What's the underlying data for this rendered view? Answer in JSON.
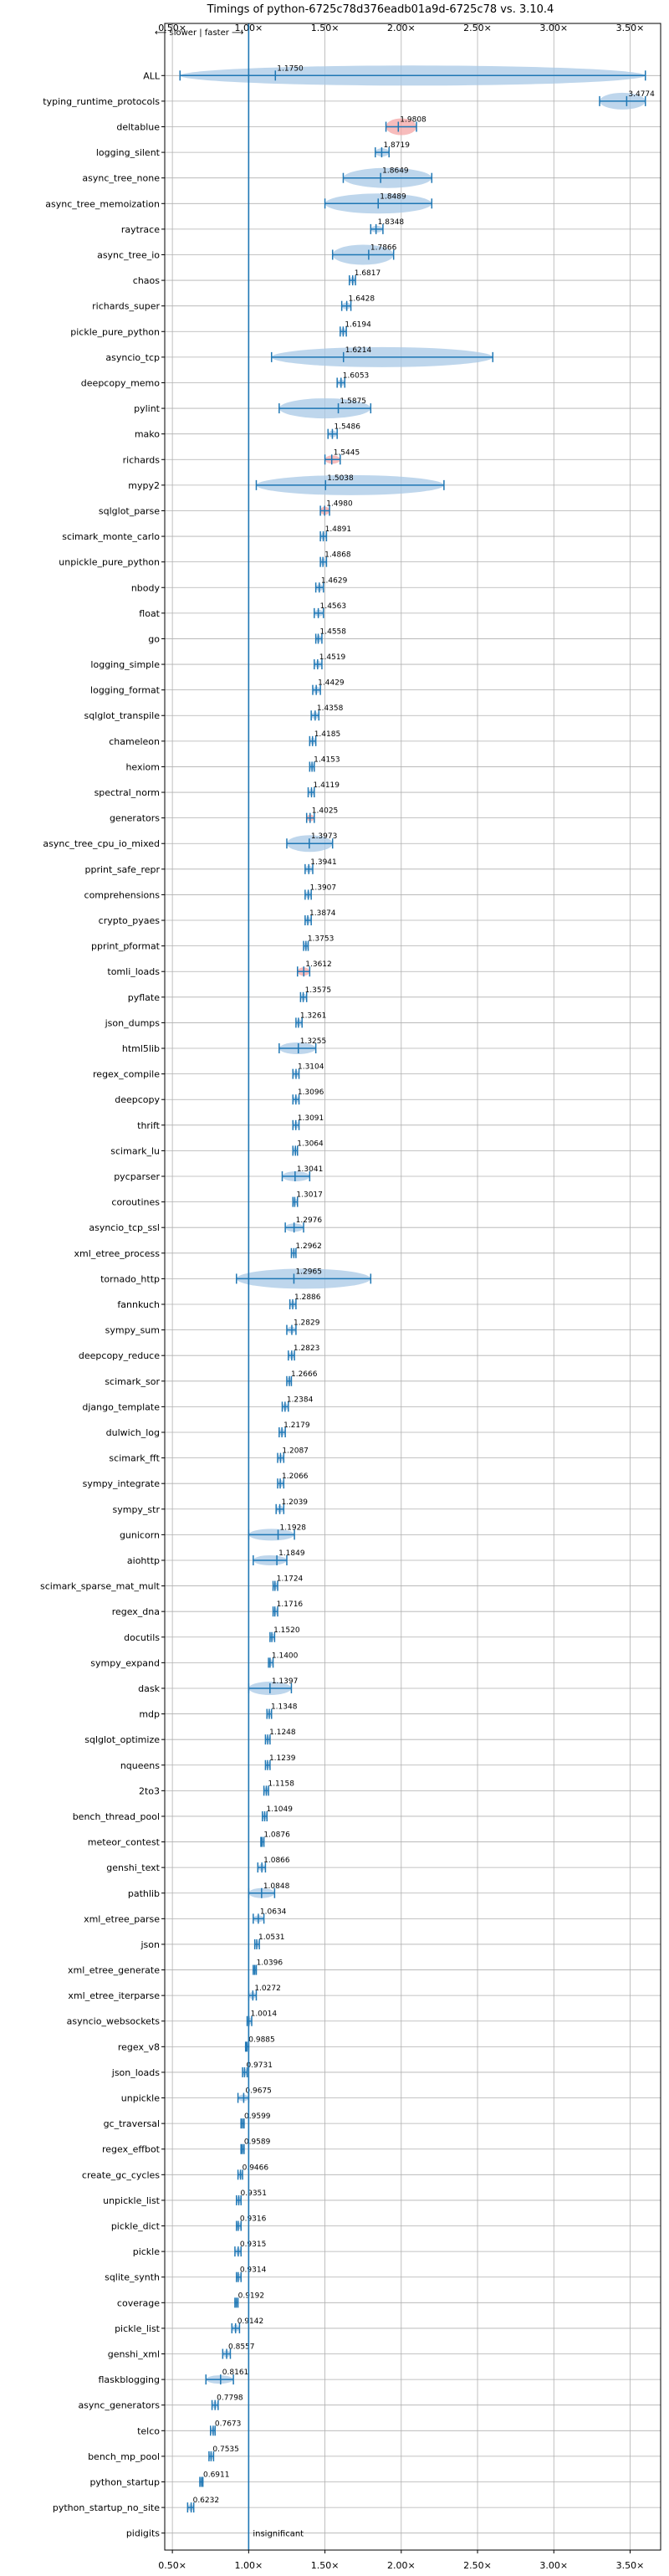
{
  "chart_data": {
    "type": "violin",
    "orientation": "horizontal",
    "title": "Timings of python-6725c78d376eadb01a9d-6725c78 vs. 3.10.4",
    "xlim": [
      0.45,
      3.7
    ],
    "x_ticks": [
      0.5,
      1.0,
      1.5,
      2.0,
      2.5,
      3.0,
      3.5
    ],
    "x_tick_labels": [
      "0.50×",
      "1.00×",
      "1.50×",
      "2.00×",
      "2.50×",
      "3.00×",
      "3.50×"
    ],
    "reference_line": 1.0,
    "direction_label": "⟵ slower | faster ⟶",
    "insignificant_label": "insignificant",
    "grid": true,
    "colors": {
      "violin_fill": "#a8c8e6",
      "violin_edge": "#1f77b4",
      "regression_fill": "#f4a6a6",
      "axis": "#000000",
      "grid": "#b0b0b0"
    },
    "benchmarks": [
      {
        "name": "ALL",
        "value": 1.175,
        "label": "1.1750",
        "min": 0.55,
        "max": 3.6,
        "spread": 0.12
      },
      {
        "name": "typing_runtime_protocols",
        "value": 3.4774,
        "label": "3.4774",
        "min": 3.3,
        "max": 3.6,
        "spread": 0.1
      },
      {
        "name": "deltablue",
        "value": 1.9808,
        "label": "1.9808",
        "min": 1.9,
        "max": 2.1,
        "spread": 0.1,
        "regression": true
      },
      {
        "name": "logging_silent",
        "value": 1.8719,
        "label": "1.8719",
        "min": 1.83,
        "max": 1.92,
        "spread": 0.05
      },
      {
        "name": "async_tree_none",
        "value": 1.8649,
        "label": "1.8649",
        "min": 1.62,
        "max": 2.2,
        "spread": 0.12
      },
      {
        "name": "async_tree_memoization",
        "value": 1.8489,
        "label": "1.8489",
        "min": 1.5,
        "max": 2.2,
        "spread": 0.12
      },
      {
        "name": "raytrace",
        "value": 1.8348,
        "label": "1.8348",
        "min": 1.8,
        "max": 1.88,
        "spread": 0.04
      },
      {
        "name": "async_tree_io",
        "value": 1.7866,
        "label": "1.7866",
        "min": 1.55,
        "max": 1.95,
        "spread": 0.12
      },
      {
        "name": "chaos",
        "value": 1.6817,
        "label": "1.6817",
        "min": 1.66,
        "max": 1.7,
        "spread": 0.03
      },
      {
        "name": "richards_super",
        "value": 1.6428,
        "label": "1.6428",
        "min": 1.61,
        "max": 1.67,
        "spread": 0.04
      },
      {
        "name": "pickle_pure_python",
        "value": 1.6194,
        "label": "1.6194",
        "min": 1.6,
        "max": 1.64,
        "spread": 0.03
      },
      {
        "name": "asyncio_tcp",
        "value": 1.6214,
        "label": "1.6214",
        "min": 1.15,
        "max": 2.6,
        "spread": 0.12
      },
      {
        "name": "deepcopy_memo",
        "value": 1.6053,
        "label": "1.6053",
        "min": 1.58,
        "max": 1.63,
        "spread": 0.04
      },
      {
        "name": "pylint",
        "value": 1.5875,
        "label": "1.5875",
        "min": 1.2,
        "max": 1.8,
        "spread": 0.12
      },
      {
        "name": "mako",
        "value": 1.5486,
        "label": "1.5486",
        "min": 1.52,
        "max": 1.58,
        "spread": 0.04
      },
      {
        "name": "richards",
        "value": 1.5445,
        "label": "1.5445",
        "min": 1.5,
        "max": 1.6,
        "spread": 0.05,
        "regression": true
      },
      {
        "name": "mypy2",
        "value": 1.5038,
        "label": "1.5038",
        "min": 1.05,
        "max": 2.28,
        "spread": 0.12
      },
      {
        "name": "sqlglot_parse",
        "value": 1.498,
        "label": "1.4980",
        "min": 1.47,
        "max": 1.53,
        "spread": 0.05,
        "regression": true
      },
      {
        "name": "scimark_monte_carlo",
        "value": 1.4891,
        "label": "1.4891",
        "min": 1.47,
        "max": 1.51,
        "spread": 0.04
      },
      {
        "name": "unpickle_pure_python",
        "value": 1.4868,
        "label": "1.4868",
        "min": 1.47,
        "max": 1.51,
        "spread": 0.04
      },
      {
        "name": "nbody",
        "value": 1.4629,
        "label": "1.4629",
        "min": 1.44,
        "max": 1.49,
        "spread": 0.04
      },
      {
        "name": "float",
        "value": 1.4563,
        "label": "1.4563",
        "min": 1.43,
        "max": 1.49,
        "spread": 0.04
      },
      {
        "name": "go",
        "value": 1.4558,
        "label": "1.4558",
        "min": 1.44,
        "max": 1.48,
        "spread": 0.04
      },
      {
        "name": "logging_simple",
        "value": 1.4519,
        "label": "1.4519",
        "min": 1.43,
        "max": 1.48,
        "spread": 0.04
      },
      {
        "name": "logging_format",
        "value": 1.4429,
        "label": "1.4429",
        "min": 1.42,
        "max": 1.47,
        "spread": 0.04
      },
      {
        "name": "sqlglot_transpile",
        "value": 1.4358,
        "label": "1.4358",
        "min": 1.41,
        "max": 1.46,
        "spread": 0.04
      },
      {
        "name": "chameleon",
        "value": 1.4185,
        "label": "1.4185",
        "min": 1.4,
        "max": 1.44,
        "spread": 0.04
      },
      {
        "name": "hexiom",
        "value": 1.4153,
        "label": "1.4153",
        "min": 1.4,
        "max": 1.43,
        "spread": 0.03
      },
      {
        "name": "spectral_norm",
        "value": 1.4119,
        "label": "1.4119",
        "min": 1.39,
        "max": 1.43,
        "spread": 0.03
      },
      {
        "name": "generators",
        "value": 1.4025,
        "label": "1.4025",
        "min": 1.38,
        "max": 1.43,
        "spread": 0.04,
        "regression": true
      },
      {
        "name": "async_tree_cpu_io_mixed",
        "value": 1.3973,
        "label": "1.3973",
        "min": 1.25,
        "max": 1.55,
        "spread": 0.1
      },
      {
        "name": "pprint_safe_repr",
        "value": 1.3941,
        "label": "1.3941",
        "min": 1.37,
        "max": 1.42,
        "spread": 0.04
      },
      {
        "name": "comprehensions",
        "value": 1.3907,
        "label": "1.3907",
        "min": 1.37,
        "max": 1.41,
        "spread": 0.03
      },
      {
        "name": "crypto_pyaes",
        "value": 1.3874,
        "label": "1.3874",
        "min": 1.37,
        "max": 1.41,
        "spread": 0.03
      },
      {
        "name": "pprint_pformat",
        "value": 1.3753,
        "label": "1.3753",
        "min": 1.36,
        "max": 1.39,
        "spread": 0.03
      },
      {
        "name": "tomli_loads",
        "value": 1.3612,
        "label": "1.3612",
        "min": 1.32,
        "max": 1.4,
        "spread": 0.05,
        "regression": true
      },
      {
        "name": "pyflate",
        "value": 1.3575,
        "label": "1.3575",
        "min": 1.34,
        "max": 1.38,
        "spread": 0.03
      },
      {
        "name": "json_dumps",
        "value": 1.3261,
        "label": "1.3261",
        "min": 1.31,
        "max": 1.35,
        "spread": 0.03
      },
      {
        "name": "html5lib",
        "value": 1.3255,
        "label": "1.3255",
        "min": 1.2,
        "max": 1.44,
        "spread": 0.07
      },
      {
        "name": "regex_compile",
        "value": 1.3104,
        "label": "1.3104",
        "min": 1.29,
        "max": 1.33,
        "spread": 0.03
      },
      {
        "name": "deepcopy",
        "value": 1.3096,
        "label": "1.3096",
        "min": 1.29,
        "max": 1.33,
        "spread": 0.03
      },
      {
        "name": "thrift",
        "value": 1.3091,
        "label": "1.3091",
        "min": 1.29,
        "max": 1.33,
        "spread": 0.03
      },
      {
        "name": "scimark_lu",
        "value": 1.3064,
        "label": "1.3064",
        "min": 1.29,
        "max": 1.32,
        "spread": 0.03
      },
      {
        "name": "pycparser",
        "value": 1.3041,
        "label": "1.3041",
        "min": 1.22,
        "max": 1.4,
        "spread": 0.06
      },
      {
        "name": "coroutines",
        "value": 1.3017,
        "label": "1.3017",
        "min": 1.29,
        "max": 1.32,
        "spread": 0.03
      },
      {
        "name": "asyncio_tcp_ssl",
        "value": 1.2976,
        "label": "1.2976",
        "min": 1.24,
        "max": 1.36,
        "spread": 0.05
      },
      {
        "name": "xml_etree_process",
        "value": 1.2962,
        "label": "1.2962",
        "min": 1.28,
        "max": 1.31,
        "spread": 0.03
      },
      {
        "name": "tornado_http",
        "value": 1.2965,
        "label": "1.2965",
        "min": 0.92,
        "max": 1.8,
        "spread": 0.12
      },
      {
        "name": "fannkuch",
        "value": 1.2886,
        "label": "1.2886",
        "min": 1.27,
        "max": 1.31,
        "spread": 0.03
      },
      {
        "name": "sympy_sum",
        "value": 1.2829,
        "label": "1.2829",
        "min": 1.25,
        "max": 1.31,
        "spread": 0.04
      },
      {
        "name": "deepcopy_reduce",
        "value": 1.2823,
        "label": "1.2823",
        "min": 1.26,
        "max": 1.3,
        "spread": 0.03
      },
      {
        "name": "scimark_sor",
        "value": 1.2666,
        "label": "1.2666",
        "min": 1.25,
        "max": 1.28,
        "spread": 0.03
      },
      {
        "name": "django_template",
        "value": 1.2384,
        "label": "1.2384",
        "min": 1.22,
        "max": 1.26,
        "spread": 0.03
      },
      {
        "name": "dulwich_log",
        "value": 1.2179,
        "label": "1.2179",
        "min": 1.2,
        "max": 1.24,
        "spread": 0.03
      },
      {
        "name": "scimark_fft",
        "value": 1.2087,
        "label": "1.2087",
        "min": 1.19,
        "max": 1.23,
        "spread": 0.03
      },
      {
        "name": "sympy_integrate",
        "value": 1.2066,
        "label": "1.2066",
        "min": 1.19,
        "max": 1.23,
        "spread": 0.03
      },
      {
        "name": "sympy_str",
        "value": 1.2039,
        "label": "1.2039",
        "min": 1.18,
        "max": 1.23,
        "spread": 0.03
      },
      {
        "name": "gunicorn",
        "value": 1.1928,
        "label": "1.1928",
        "min": 1.0,
        "max": 1.3,
        "spread": 0.07
      },
      {
        "name": "aiohttp",
        "value": 1.1849,
        "label": "1.1849",
        "min": 1.03,
        "max": 1.25,
        "spread": 0.06
      },
      {
        "name": "scimark_sparse_mat_mult",
        "value": 1.1724,
        "label": "1.1724",
        "min": 1.16,
        "max": 1.19,
        "spread": 0.03
      },
      {
        "name": "regex_dna",
        "value": 1.1716,
        "label": "1.1716",
        "min": 1.16,
        "max": 1.19,
        "spread": 0.03
      },
      {
        "name": "docutils",
        "value": 1.152,
        "label": "1.1520",
        "min": 1.14,
        "max": 1.17,
        "spread": 0.03
      },
      {
        "name": "sympy_expand",
        "value": 1.14,
        "label": "1.1400",
        "min": 1.13,
        "max": 1.16,
        "spread": 0.03
      },
      {
        "name": "dask",
        "value": 1.1397,
        "label": "1.1397",
        "min": 1.0,
        "max": 1.28,
        "spread": 0.08
      },
      {
        "name": "mdp",
        "value": 1.1348,
        "label": "1.1348",
        "min": 1.12,
        "max": 1.15,
        "spread": 0.03
      },
      {
        "name": "sqlglot_optimize",
        "value": 1.1248,
        "label": "1.1248",
        "min": 1.11,
        "max": 1.14,
        "spread": 0.03
      },
      {
        "name": "nqueens",
        "value": 1.1239,
        "label": "1.1239",
        "min": 1.11,
        "max": 1.14,
        "spread": 0.03
      },
      {
        "name": "2to3",
        "value": 1.1158,
        "label": "1.1158",
        "min": 1.1,
        "max": 1.13,
        "spread": 0.03
      },
      {
        "name": "bench_thread_pool",
        "value": 1.1049,
        "label": "1.1049",
        "min": 1.09,
        "max": 1.12,
        "spread": 0.03
      },
      {
        "name": "meteor_contest",
        "value": 1.0876,
        "label": "1.0876",
        "min": 1.08,
        "max": 1.1,
        "spread": 0.02
      },
      {
        "name": "genshi_text",
        "value": 1.0866,
        "label": "1.0866",
        "min": 1.06,
        "max": 1.11,
        "spread": 0.04
      },
      {
        "name": "pathlib",
        "value": 1.0848,
        "label": "1.0848",
        "min": 1.0,
        "max": 1.17,
        "spread": 0.06
      },
      {
        "name": "xml_etree_parse",
        "value": 1.0634,
        "label": "1.0634",
        "min": 1.03,
        "max": 1.1,
        "spread": 0.04
      },
      {
        "name": "json",
        "value": 1.0531,
        "label": "1.0531",
        "min": 1.04,
        "max": 1.07,
        "spread": 0.03
      },
      {
        "name": "xml_etree_generate",
        "value": 1.0396,
        "label": "1.0396",
        "min": 1.03,
        "max": 1.05,
        "spread": 0.02
      },
      {
        "name": "xml_etree_iterparse",
        "value": 1.0272,
        "label": "1.0272",
        "min": 1.0,
        "max": 1.05,
        "spread": 0.04
      },
      {
        "name": "asyncio_websockets",
        "value": 1.0014,
        "label": "1.0014",
        "min": 0.99,
        "max": 1.02,
        "spread": 0.03
      },
      {
        "name": "regex_v8",
        "value": 0.9885,
        "label": "0.9885",
        "min": 0.98,
        "max": 1.0,
        "spread": 0.02
      },
      {
        "name": "json_loads",
        "value": 0.9731,
        "label": "0.9731",
        "min": 0.96,
        "max": 0.99,
        "spread": 0.03
      },
      {
        "name": "unpickle",
        "value": 0.9675,
        "label": "0.9675",
        "min": 0.93,
        "max": 1.0,
        "spread": 0.04
      },
      {
        "name": "gc_traversal",
        "value": 0.9599,
        "label": "0.9599",
        "min": 0.95,
        "max": 0.97,
        "spread": 0.02
      },
      {
        "name": "regex_effbot",
        "value": 0.9589,
        "label": "0.9589",
        "min": 0.95,
        "max": 0.97,
        "spread": 0.02
      },
      {
        "name": "create_gc_cycles",
        "value": 0.9466,
        "label": "0.9466",
        "min": 0.93,
        "max": 0.96,
        "spread": 0.03
      },
      {
        "name": "unpickle_list",
        "value": 0.9351,
        "label": "0.9351",
        "min": 0.92,
        "max": 0.95,
        "spread": 0.03
      },
      {
        "name": "pickle_dict",
        "value": 0.9316,
        "label": "0.9316",
        "min": 0.92,
        "max": 0.95,
        "spread": 0.03
      },
      {
        "name": "pickle",
        "value": 0.9315,
        "label": "0.9315",
        "min": 0.91,
        "max": 0.95,
        "spread": 0.03
      },
      {
        "name": "sqlite_synth",
        "value": 0.9314,
        "label": "0.9314",
        "min": 0.92,
        "max": 0.95,
        "spread": 0.03
      },
      {
        "name": "coverage",
        "value": 0.9192,
        "label": "0.9192",
        "min": 0.91,
        "max": 0.93,
        "spread": 0.02
      },
      {
        "name": "pickle_list",
        "value": 0.9142,
        "label": "0.9142",
        "min": 0.89,
        "max": 0.94,
        "spread": 0.04
      },
      {
        "name": "genshi_xml",
        "value": 0.8557,
        "label": "0.8557",
        "min": 0.83,
        "max": 0.88,
        "spread": 0.04
      },
      {
        "name": "flaskblogging",
        "value": 0.8161,
        "label": "0.8161",
        "min": 0.72,
        "max": 0.9,
        "spread": 0.05
      },
      {
        "name": "async_generators",
        "value": 0.7798,
        "label": "0.7798",
        "min": 0.76,
        "max": 0.8,
        "spread": 0.03
      },
      {
        "name": "telco",
        "value": 0.7673,
        "label": "0.7673",
        "min": 0.75,
        "max": 0.78,
        "spread": 0.03
      },
      {
        "name": "bench_mp_pool",
        "value": 0.7535,
        "label": "0.7535",
        "min": 0.74,
        "max": 0.77,
        "spread": 0.03
      },
      {
        "name": "python_startup",
        "value": 0.6911,
        "label": "0.6911",
        "min": 0.68,
        "max": 0.7,
        "spread": 0.02
      },
      {
        "name": "python_startup_no_site",
        "value": 0.6232,
        "label": "0.6232",
        "min": 0.6,
        "max": 0.64,
        "spread": 0.03
      },
      {
        "name": "pidigits",
        "value": 1.0,
        "label": "",
        "min": 1.0,
        "max": 1.0,
        "spread": 0,
        "insignificant": true
      }
    ]
  }
}
